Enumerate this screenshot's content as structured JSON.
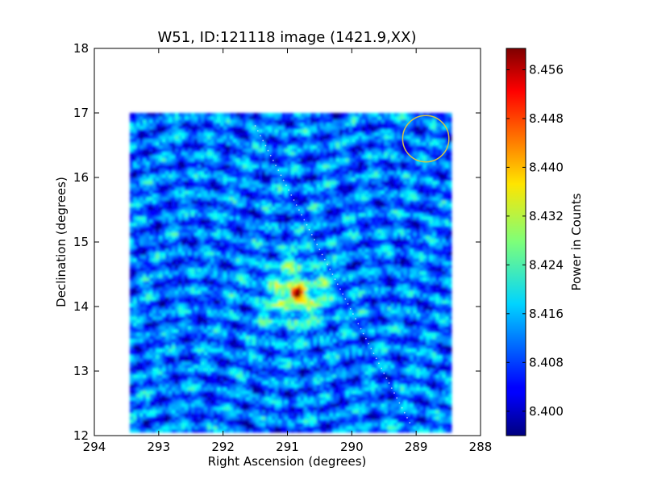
{
  "chart_data": {
    "type": "heatmap",
    "title": "W51, ID:121118 image (1421.9,XX)",
    "xlabel": "Right Ascension (degrees)",
    "ylabel": "Declination (degrees)",
    "xlim": [
      294,
      288
    ],
    "ylim": [
      12,
      18
    ],
    "x_ticks": [
      "294",
      "293",
      "292",
      "291",
      "290",
      "289",
      "288"
    ],
    "y_ticks": [
      "12",
      "13",
      "14",
      "15",
      "16",
      "17",
      "18"
    ],
    "image_extent": {
      "ra": [
        293.45,
        288.45
      ],
      "dec": [
        12.05,
        17.0
      ]
    },
    "source": {
      "ra": 290.85,
      "dec": 14.2,
      "value": 8.459
    },
    "background_value": 8.41,
    "annotation_circle": {
      "ra": 288.85,
      "dec": 16.6,
      "radius_deg": 0.36,
      "color": "#cfc24a"
    },
    "scan_track": {
      "from": {
        "ra": 291.5,
        "dec": 16.8
      },
      "to": {
        "ra": 289.1,
        "dec": 12.2
      }
    },
    "colorbar": {
      "label": "Power in Counts",
      "ticks": [
        "8.456",
        "8.448",
        "8.440",
        "8.432",
        "8.424",
        "8.416",
        "8.408",
        "8.400"
      ],
      "range": [
        8.396,
        8.4595
      ],
      "colormap": "jet"
    }
  }
}
